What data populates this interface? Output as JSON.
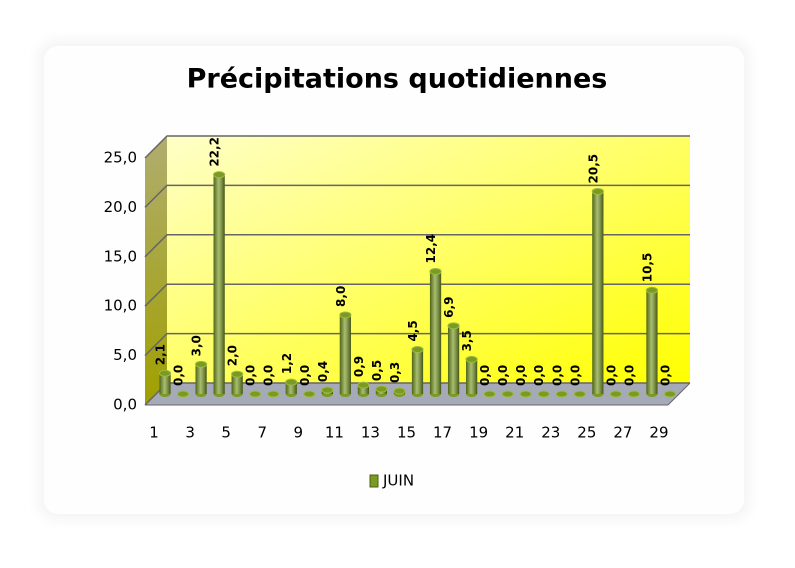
{
  "chart_data": {
    "type": "bar",
    "title": "Précipitations quotidiennes",
    "categories": [
      "1",
      null,
      "3",
      null,
      "5",
      null,
      "7",
      null,
      "9",
      null,
      "11",
      null,
      "13",
      null,
      "15",
      null,
      "17",
      null,
      "19",
      null,
      "21",
      null,
      "23",
      null,
      "25",
      null,
      "27",
      null,
      "29"
    ],
    "series": [
      {
        "name": "JUIN",
        "color": "#7a9a22",
        "values": [
          2.1,
          0.0,
          3.0,
          22.2,
          2.0,
          0.0,
          0.0,
          1.2,
          0.0,
          0.4,
          8.0,
          0.9,
          0.5,
          0.3,
          4.5,
          12.4,
          6.9,
          3.5,
          0.0,
          0.0,
          0.0,
          0.0,
          0.0,
          0.0,
          20.5,
          0.0,
          0.0,
          10.5,
          0.0
        ],
        "value_labels": [
          "2,1",
          "0,0",
          "3,0",
          "22,2",
          "2,0",
          "0,0",
          "0,0",
          "1,2",
          "0,0",
          "0,4",
          "8,0",
          "0,9",
          "0,5",
          "0,3",
          "4,5",
          "12,4",
          "6,9",
          "3,5",
          "0,0",
          "0,0",
          "0,0",
          "0,0",
          "0,0",
          "0,0",
          "20,5",
          "0,0",
          "0,0",
          "10,5",
          "0,0"
        ]
      }
    ],
    "ylim": [
      0,
      25
    ],
    "yticks": [
      {
        "value": 0,
        "label": "0,0"
      },
      {
        "value": 5,
        "label": "5,0"
      },
      {
        "value": 10,
        "label": "10,0"
      },
      {
        "value": 15,
        "label": "15,0"
      },
      {
        "value": 20,
        "label": "20,0"
      },
      {
        "value": 25,
        "label": "25,0"
      }
    ],
    "grid": true,
    "legend": "bottom"
  }
}
